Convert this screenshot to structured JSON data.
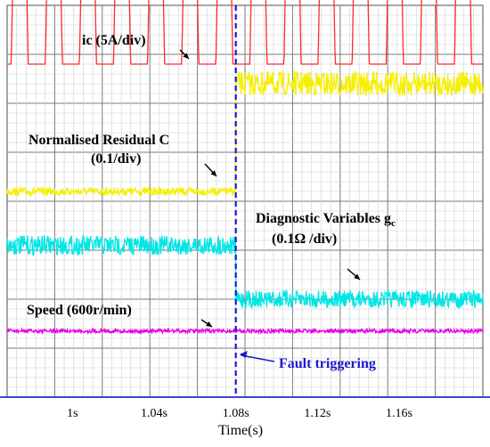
{
  "chart_data": {
    "type": "line",
    "xlabel": "Time(s)",
    "x_ticks": [
      "1s",
      "1.04s",
      "1.08s",
      "1.12s",
      "1.16s"
    ],
    "x_tick_values": [
      1.0,
      1.04,
      1.08,
      1.12,
      1.16
    ],
    "xlim": [
      0.968,
      1.201
    ],
    "grid": true,
    "fault_time": 1.08,
    "series": [
      {
        "name": "ic (5A/div)",
        "color": "#ff2a2a",
        "label": "ic (5A/div)",
        "sub": "",
        "kind": "current",
        "level_div": 6.8,
        "pulse_period": 0.0167,
        "pulse_height_pre_div": 1.8,
        "pulse_height_post_div": 2.0
      },
      {
        "name": "Normalised Residual C",
        "color": "#f5f000",
        "label": "Normalised Residual C",
        "sub": "(0.1/div)",
        "kind": "step",
        "pre_div": 4.2,
        "post_div": 6.4,
        "noise_pre": 0.08,
        "noise_post": 0.25
      },
      {
        "name": "Diagnostic Variables gc",
        "color": "#00e6e6",
        "label": "Diagnostic Variables g",
        "label_sub": "c",
        "sub": "(0.1Ω /div)",
        "kind": "step",
        "pre_div": 3.1,
        "post_div": 2.0,
        "noise_pre": 0.2,
        "noise_post": 0.18
      },
      {
        "name": "Speed (600r/min)",
        "color": "#e600e6",
        "label": "Speed (600r/min)",
        "sub": "",
        "kind": "flat",
        "pre_div": 1.35,
        "post_div": 1.35,
        "noise_pre": 0.04,
        "noise_post": 0.04
      }
    ],
    "annotations": {
      "fault": "Fault triggering"
    }
  }
}
